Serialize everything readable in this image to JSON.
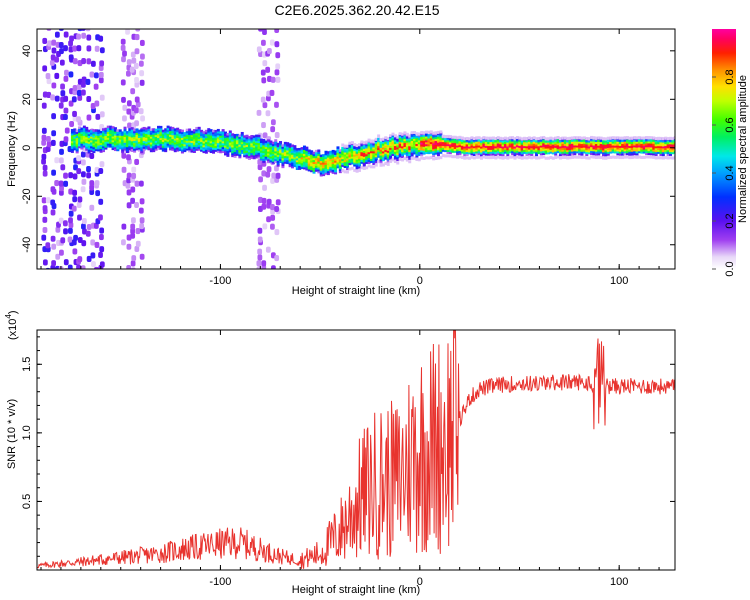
{
  "figure_title": "C2E6.2025.362.20.42.E15",
  "chart_data": [
    {
      "type": "heatmap",
      "title": "C2E6.2025.362.20.42.E15",
      "xlabel": "Height of straight line (km)",
      "ylabel": "Frequency (Hz)",
      "xlim": [
        -192,
        128
      ],
      "ylim": [
        -50,
        49
      ],
      "xticks": [
        -100,
        0,
        100
      ],
      "yticks": [
        -40,
        -20,
        0,
        20,
        40
      ],
      "xtick_labels": [
        "-100",
        "0",
        "100"
      ],
      "ytick_labels": [
        "-40",
        "-20",
        "0",
        "20",
        "40"
      ],
      "colorbar": {
        "label": "Normalized spectral amplitude",
        "range": [
          0,
          1
        ],
        "ticks": [
          0.0,
          0.2,
          0.4,
          0.6,
          0.8
        ],
        "tick_labels": [
          "0.0",
          "0.2",
          "0.4",
          "0.6",
          "0.8"
        ],
        "colormap": "rainbow (white-violet-blue-cyan-green-yellow-orange-red-magenta)"
      },
      "ridge_frequency_hz": {
        "x": [
          -175,
          -150,
          -125,
          -100,
          -85,
          -70,
          -60,
          -50,
          -40,
          -30,
          -20,
          -10,
          0,
          10,
          20,
          40,
          60,
          80,
          100,
          128
        ],
        "y": [
          4,
          4,
          4,
          3,
          1,
          -2,
          -4,
          -6,
          -4,
          -2,
          0,
          1,
          2,
          2,
          1,
          1,
          1,
          1,
          1,
          1
        ]
      },
      "noise_bands_km": [
        [
          -190,
          -160
        ],
        [
          -150,
          -140
        ],
        [
          -82,
          -72
        ]
      ]
    },
    {
      "type": "line",
      "xlabel": "Height of straight line (km)",
      "ylabel": "SNR (10 * v/v)",
      "y_scale_label": "(x10",
      "y_scale_exponent": "4",
      "xlim": [
        -192,
        128
      ],
      "ylim": [
        0,
        17500
      ],
      "xticks": [
        -100,
        0,
        100
      ],
      "yticks": [
        5000,
        10000,
        15000
      ],
      "xtick_labels": [
        "-100",
        "0",
        "100"
      ],
      "ytick_labels": [
        "0.5",
        "1.0",
        "1.5"
      ],
      "line_color": "#e8332e",
      "series": [
        {
          "name": "SNR",
          "x": [
            -192,
            -170,
            -150,
            -130,
            -120,
            -110,
            -100,
            -90,
            -80,
            -70,
            -60,
            -50,
            -40,
            -35,
            -30,
            -25,
            -20,
            -15,
            -10,
            -5,
            0,
            5,
            10,
            15,
            20,
            25,
            30,
            40,
            50,
            60,
            70,
            80,
            85,
            88,
            90,
            92,
            95,
            100,
            110,
            120,
            128
          ],
          "y": [
            300,
            600,
            900,
            1200,
            1500,
            1700,
            1900,
            2000,
            1500,
            1000,
            700,
            1200,
            2800,
            4000,
            5200,
            6000,
            6500,
            6500,
            6700,
            8000,
            8800,
            9000,
            9300,
            10000,
            11000,
            12500,
            13200,
            13500,
            13600,
            13600,
            13700,
            13700,
            13600,
            13600,
            13500,
            13500,
            13400,
            13400,
            13400,
            13400,
            13300
          ]
        }
      ]
    }
  ]
}
